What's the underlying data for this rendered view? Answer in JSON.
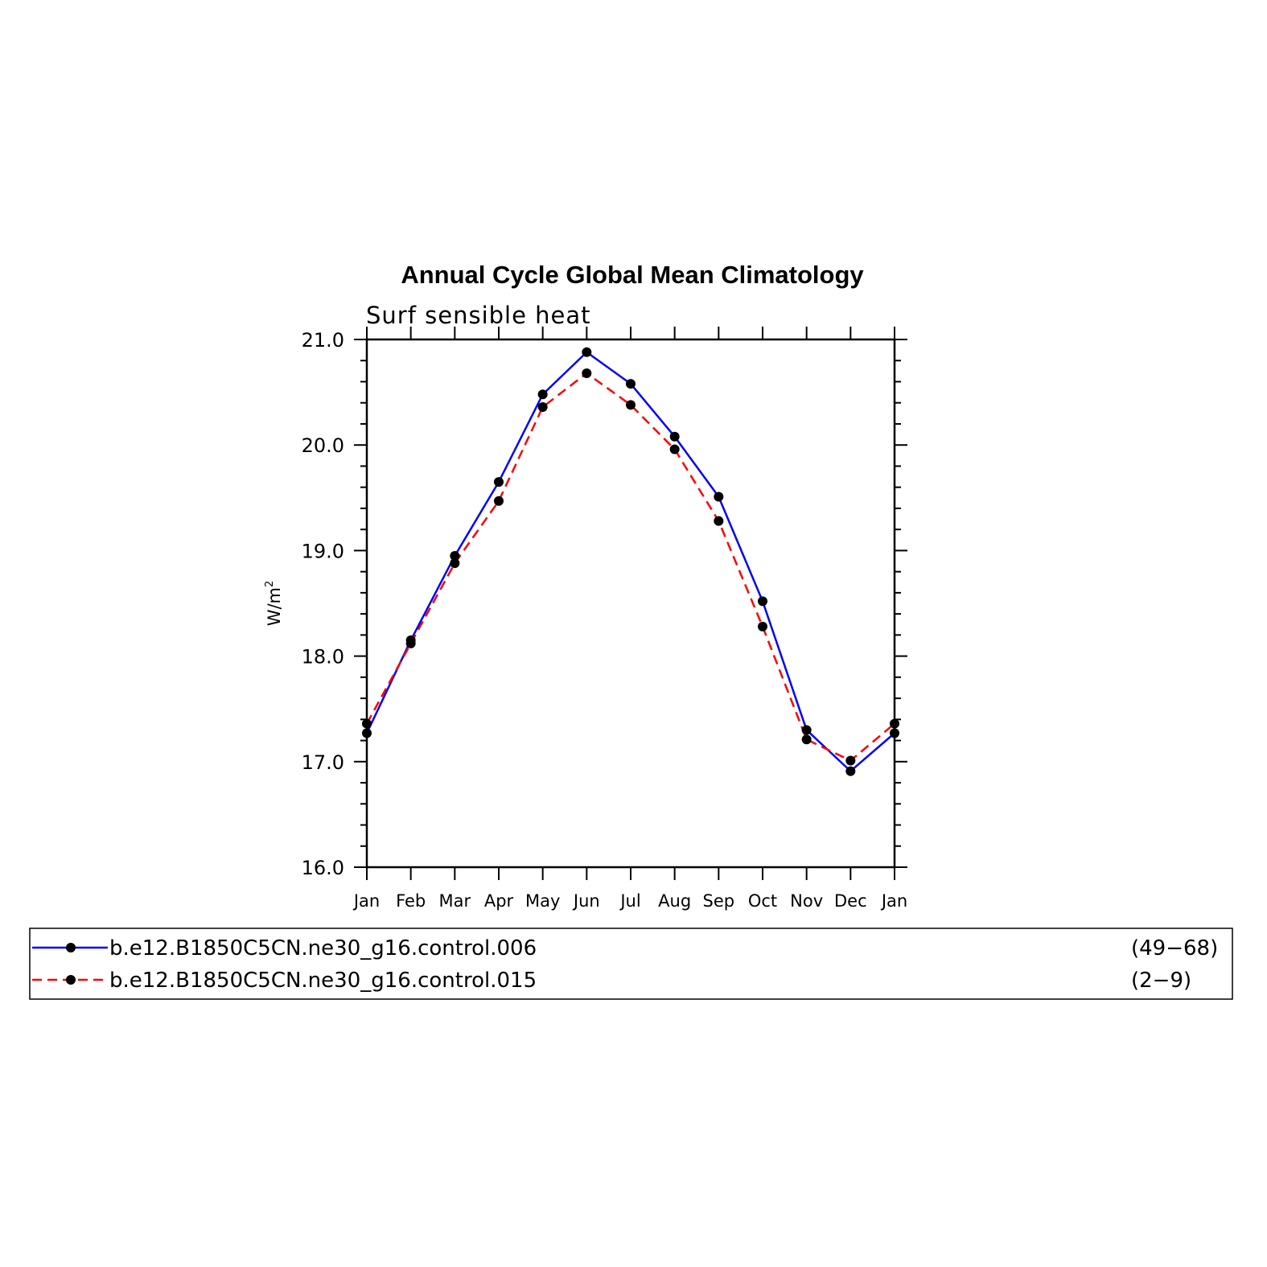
{
  "chart_data": {
    "type": "line",
    "title": "Annual Cycle Global Mean Climatology",
    "subtitle": "Surf sensible heat",
    "ylabel": "W/m",
    "ylabel_superscript": "2",
    "xlabel": "",
    "ylim": [
      16.0,
      21.0
    ],
    "yticks": [
      "16.0",
      "17.0",
      "18.0",
      "19.0",
      "20.0",
      "21.0"
    ],
    "categories": [
      "Jan",
      "Feb",
      "Mar",
      "Apr",
      "May",
      "Jun",
      "Jul",
      "Aug",
      "Sep",
      "Oct",
      "Nov",
      "Dec",
      "Jan"
    ],
    "series": [
      {
        "name": "b.e12.B1850C5CN.ne30_g16.control.006",
        "years": "(49−68)",
        "color": "#0000ff",
        "dash": "solid",
        "values": [
          17.27,
          18.15,
          18.95,
          19.65,
          20.48,
          20.88,
          20.58,
          20.08,
          19.51,
          18.52,
          17.3,
          16.91,
          17.27
        ]
      },
      {
        "name": "b.e12.B1850C5CN.ne30_g16.control.015",
        "years": "(2−9)",
        "color": "#ff0000",
        "dash": "dashed",
        "values": [
          17.36,
          18.12,
          18.88,
          19.47,
          20.36,
          20.68,
          20.38,
          19.96,
          19.28,
          18.28,
          17.21,
          17.01,
          17.36
        ]
      }
    ],
    "grid": false,
    "legend_position": "bottom"
  }
}
